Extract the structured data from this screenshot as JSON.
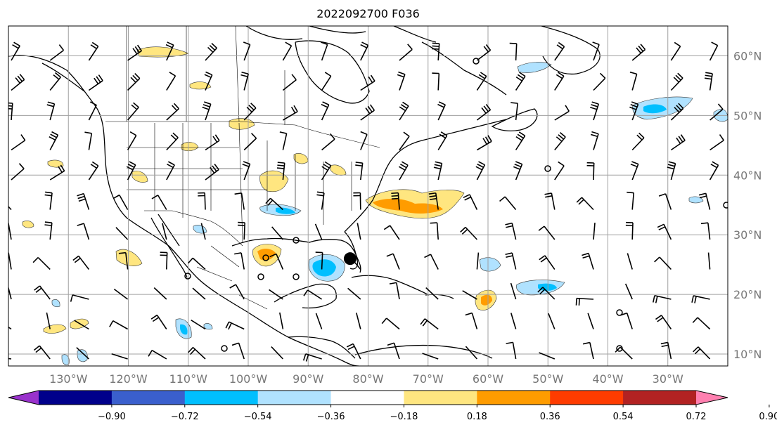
{
  "title": "2022092700 F036",
  "map": {
    "lon_labels": [
      "130°W",
      "120°W",
      "110°W",
      "100°W",
      "90°W",
      "80°W",
      "70°W",
      "60°W",
      "50°W",
      "40°W",
      "30°W"
    ],
    "lat_labels": [
      "60°N",
      "50°N",
      "40°N",
      "30°N",
      "20°N",
      "10°N"
    ],
    "lon_values": [
      -130,
      -120,
      -110,
      -100,
      -90,
      -80,
      -70,
      -60,
      -50,
      -40,
      -30
    ],
    "lat_values": [
      60,
      50,
      40,
      30,
      20,
      10
    ],
    "extent": {
      "lon_min": -140,
      "lon_max": -20,
      "lat_min": 8,
      "lat_max": 65
    },
    "grid": true,
    "storm_marker": {
      "lon": -83,
      "lat": 26
    },
    "colors": {
      "coast": "#000000",
      "grid": "#a0a0a0"
    }
  },
  "colorbar": {
    "levels": [
      "−0.90",
      "−0.72",
      "−0.54",
      "−0.36",
      "−0.18",
      "0.18",
      "0.36",
      "0.54",
      "0.72",
      "0.90"
    ],
    "colors": [
      "#9932cc",
      "#00008b",
      "#3a5fcd",
      "#00bfff",
      "#b0e2ff",
      "#ffffff",
      "#ffe680",
      "#ff9c00",
      "#ff3c00",
      "#b22222",
      "#ff80b0"
    ]
  }
}
